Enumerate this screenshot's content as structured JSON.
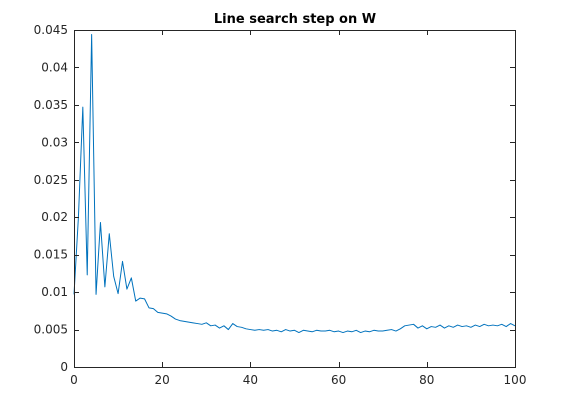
{
  "chart_data": {
    "type": "line",
    "title": "Line search step on W",
    "xlabel": "",
    "ylabel": "",
    "xlim": [
      0,
      100
    ],
    "ylim": [
      0,
      0.045
    ],
    "xticks": [
      0,
      20,
      40,
      60,
      80,
      100
    ],
    "xtick_labels": [
      "0",
      "20",
      "40",
      "60",
      "80",
      "100"
    ],
    "yticks": [
      0,
      0.005,
      0.01,
      0.015,
      0.02,
      0.025,
      0.03,
      0.035,
      0.04,
      0.045
    ],
    "ytick_labels": [
      "0",
      "0.005",
      "0.01",
      "0.015",
      "0.02",
      "0.025",
      "0.03",
      "0.035",
      "0.04",
      "0.045"
    ],
    "grid": false,
    "box": true,
    "color": "#0072bd",
    "series": [
      {
        "x": [
          0,
          1,
          2,
          3,
          4,
          5,
          6,
          7,
          8,
          9,
          10,
          11,
          12,
          13,
          14,
          15,
          16,
          17,
          18,
          19,
          20,
          21,
          22,
          23,
          24,
          25,
          26,
          27,
          28,
          29,
          30,
          31,
          32,
          33,
          34,
          35,
          36,
          37,
          38,
          39,
          40,
          41,
          42,
          43,
          44,
          45,
          46,
          47,
          48,
          49,
          50,
          51,
          52,
          53,
          54,
          55,
          56,
          57,
          58,
          59,
          60,
          61,
          62,
          63,
          64,
          65,
          66,
          67,
          68,
          69,
          70,
          71,
          72,
          73,
          74,
          75,
          76,
          77,
          78,
          79,
          80,
          81,
          82,
          83,
          84,
          85,
          86,
          87,
          88,
          89,
          90,
          91,
          92,
          93,
          94,
          95,
          96,
          97,
          98,
          99,
          100
        ],
        "y": [
          0.0097,
          0.02,
          0.0347,
          0.0123,
          0.0444,
          0.0097,
          0.0193,
          0.0107,
          0.0178,
          0.0121,
          0.0098,
          0.0141,
          0.0104,
          0.0119,
          0.0088,
          0.0092,
          0.0091,
          0.0079,
          0.0078,
          0.0073,
          0.0072,
          0.0071,
          0.0068,
          0.0064,
          0.0062,
          0.0061,
          0.006,
          0.0059,
          0.0058,
          0.0057,
          0.0059,
          0.0055,
          0.0056,
          0.0052,
          0.0055,
          0.005,
          0.0058,
          0.0054,
          0.0053,
          0.0051,
          0.005,
          0.0049,
          0.005,
          0.0049,
          0.005,
          0.0048,
          0.0049,
          0.0047,
          0.005,
          0.0048,
          0.0049,
          0.0046,
          0.0049,
          0.0048,
          0.0047,
          0.0049,
          0.0048,
          0.0048,
          0.0049,
          0.0047,
          0.0048,
          0.0046,
          0.0048,
          0.0047,
          0.0049,
          0.0046,
          0.0048,
          0.0047,
          0.0049,
          0.0048,
          0.0048,
          0.0049,
          0.005,
          0.0048,
          0.0051,
          0.0055,
          0.0056,
          0.0057,
          0.0052,
          0.0055,
          0.0051,
          0.0054,
          0.0053,
          0.0056,
          0.0052,
          0.0055,
          0.0053,
          0.0056,
          0.0054,
          0.0055,
          0.0053,
          0.0056,
          0.0054,
          0.0057,
          0.0055,
          0.0056,
          0.0055,
          0.0057,
          0.0054,
          0.0058,
          0.0055
        ]
      }
    ]
  }
}
